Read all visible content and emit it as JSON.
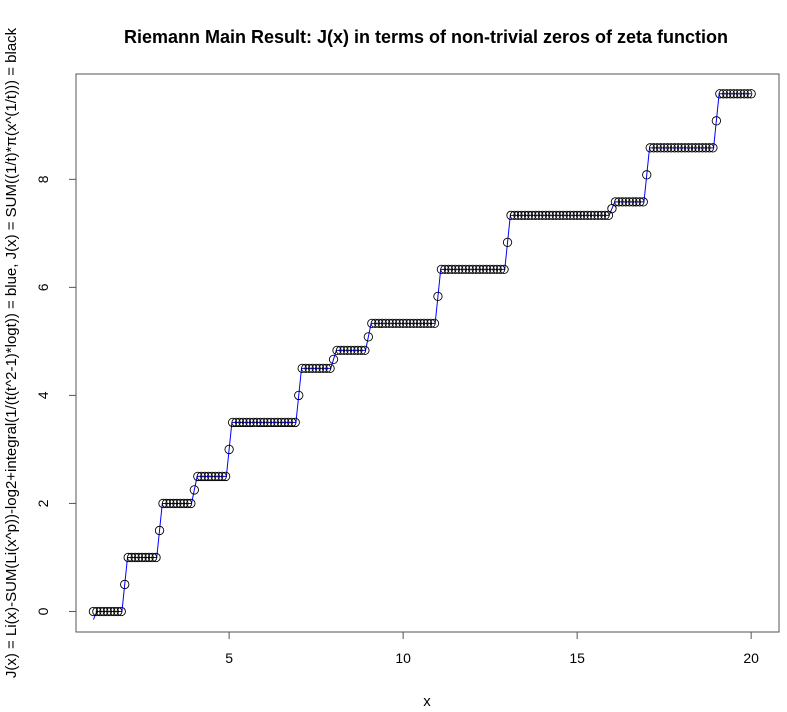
{
  "chart_data": {
    "type": "scatter",
    "title": "Riemann Main Result: J(x) in terms of non-trivial zeros of zeta function",
    "xlabel": "x",
    "ylabel": "J(x) = Li(x)-SUM(Li(x^p))-log2+integral(1/(t(t^2-1)*logt)) = blue, J(x) = SUM((1/t)*π(x^(1/t))) = black",
    "xlim": [
      0.6,
      20.8
    ],
    "ylim": [
      -0.38,
      9.95
    ],
    "x_ticks": [
      5,
      10,
      15,
      20
    ],
    "y_ticks": [
      0,
      2,
      4,
      6,
      8
    ],
    "x_tick_labels": [
      "5",
      "10",
      "15",
      "20"
    ],
    "y_tick_labels": [
      "0",
      "2",
      "4",
      "6",
      "8"
    ],
    "grid": false,
    "legend": "none",
    "series": [
      {
        "style": "line",
        "color": "#0000ff",
        "steps": [
          {
            "x": 2,
            "y": 1.0
          },
          {
            "x": 3,
            "y": 2.0
          },
          {
            "x": 4,
            "y": 2.5
          },
          {
            "x": 5,
            "y": 3.5
          },
          {
            "x": 7,
            "y": 4.5
          },
          {
            "x": 8,
            "y": 4.8333
          },
          {
            "x": 9,
            "y": 5.3333
          },
          {
            "x": 11,
            "y": 6.3333
          },
          {
            "x": 13,
            "y": 7.3333
          },
          {
            "x": 16,
            "y": 7.5833
          },
          {
            "x": 17,
            "y": 8.5833
          },
          {
            "x": 19,
            "y": 9.5833
          }
        ]
      },
      {
        "style": "points",
        "marker": "open-circle",
        "color": "#000000",
        "x_start": 1.1,
        "x_end": 20.0,
        "x_step": 0.1,
        "jumps": [
          {
            "x": 2,
            "y": 1.0
          },
          {
            "x": 3,
            "y": 2.0
          },
          {
            "x": 4,
            "y": 2.5
          },
          {
            "x": 5,
            "y": 3.5
          },
          {
            "x": 7,
            "y": 4.5
          },
          {
            "x": 8,
            "y": 4.8333
          },
          {
            "x": 9,
            "y": 5.3333
          },
          {
            "x": 11,
            "y": 6.3333
          },
          {
            "x": 13,
            "y": 7.3333
          },
          {
            "x": 16,
            "y": 7.5833
          },
          {
            "x": 17,
            "y": 8.5833
          },
          {
            "x": 19,
            "y": 9.5833
          }
        ]
      }
    ]
  }
}
